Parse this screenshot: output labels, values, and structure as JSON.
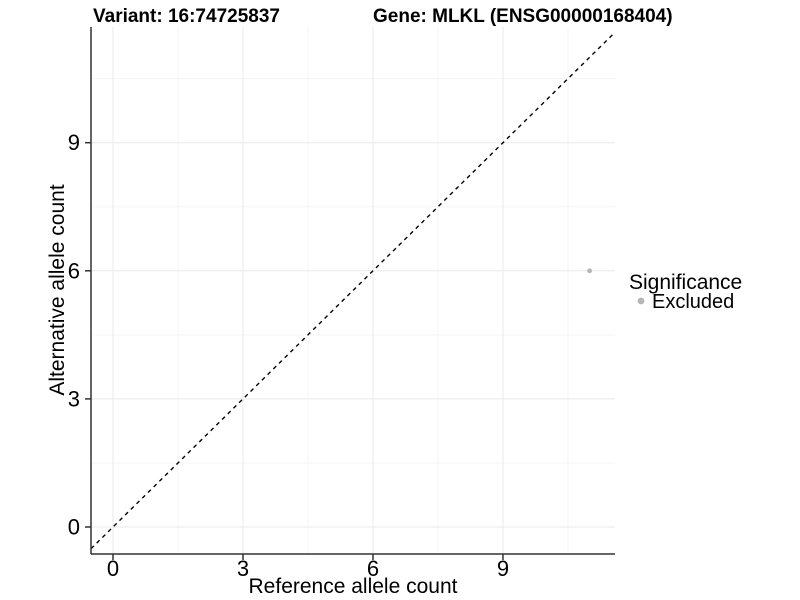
{
  "titles": {
    "variant": "Variant: 16:74725837",
    "gene": "Gene: MLKL (ENSG00000168404)"
  },
  "axes": {
    "x": {
      "label": "Reference allele count"
    },
    "y": {
      "label": "Alternative allele count"
    }
  },
  "legend": {
    "title": "Significance",
    "items": [
      {
        "label": "Excluded",
        "color": "#b5b5b5"
      }
    ]
  },
  "chart_data": {
    "type": "scatter",
    "title": "Variant: 16:74725837 | Gene: MLKL (ENSG00000168404)",
    "xlabel": "Reference allele count",
    "ylabel": "Alternative allele count",
    "xlim": [
      -0.51,
      11.59
    ],
    "ylim": [
      -0.63,
      11.71
    ],
    "x_ticks": [
      0,
      3,
      6,
      9
    ],
    "y_ticks": [
      0,
      3,
      6,
      9
    ],
    "x_minor_ticks": [
      1.5,
      4.5,
      7.5,
      10.5
    ],
    "y_minor_ticks": [
      1.5,
      4.5,
      7.5,
      10.5
    ],
    "grid": true,
    "legend_position": "right",
    "series": [
      {
        "name": "Excluded",
        "color": "#b5b5b5",
        "points": [
          {
            "x": 11,
            "y": 6
          }
        ]
      }
    ],
    "reference_line": {
      "style": "dashed",
      "slope": 1,
      "intercept": 0,
      "color": "#000000"
    }
  }
}
